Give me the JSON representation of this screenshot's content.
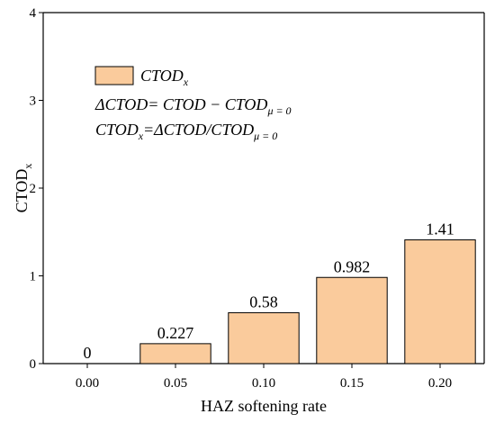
{
  "chart_data": {
    "type": "bar",
    "categories": [
      "0.00",
      "0.05",
      "0.10",
      "0.15",
      "0.20"
    ],
    "series": [
      {
        "name": "CTOD",
        "name_sub": "x",
        "values": [
          0,
          0.227,
          0.58,
          0.982,
          1.41
        ],
        "value_labels": [
          "0",
          "0.227",
          "0.58",
          "0.982",
          "1.41"
        ],
        "color": "#FACB9C"
      }
    ],
    "xlabel": "HAZ softening rate",
    "ylabel": "CTOD",
    "ylabel_sub": "x",
    "ylim": [
      0,
      4
    ],
    "yticks": [
      "0",
      "1",
      "2",
      "3",
      "4"
    ],
    "grid": false,
    "legend_position": "top-left",
    "annotations": [
      {
        "main": "ΔCTOD= CTOD − CTOD",
        "sub": "μ = 0",
        "tail": ""
      },
      {
        "main": "CTOD",
        "sub": "x",
        "tail": "=ΔCTOD/CTOD",
        "sub2": "μ = 0"
      }
    ]
  }
}
